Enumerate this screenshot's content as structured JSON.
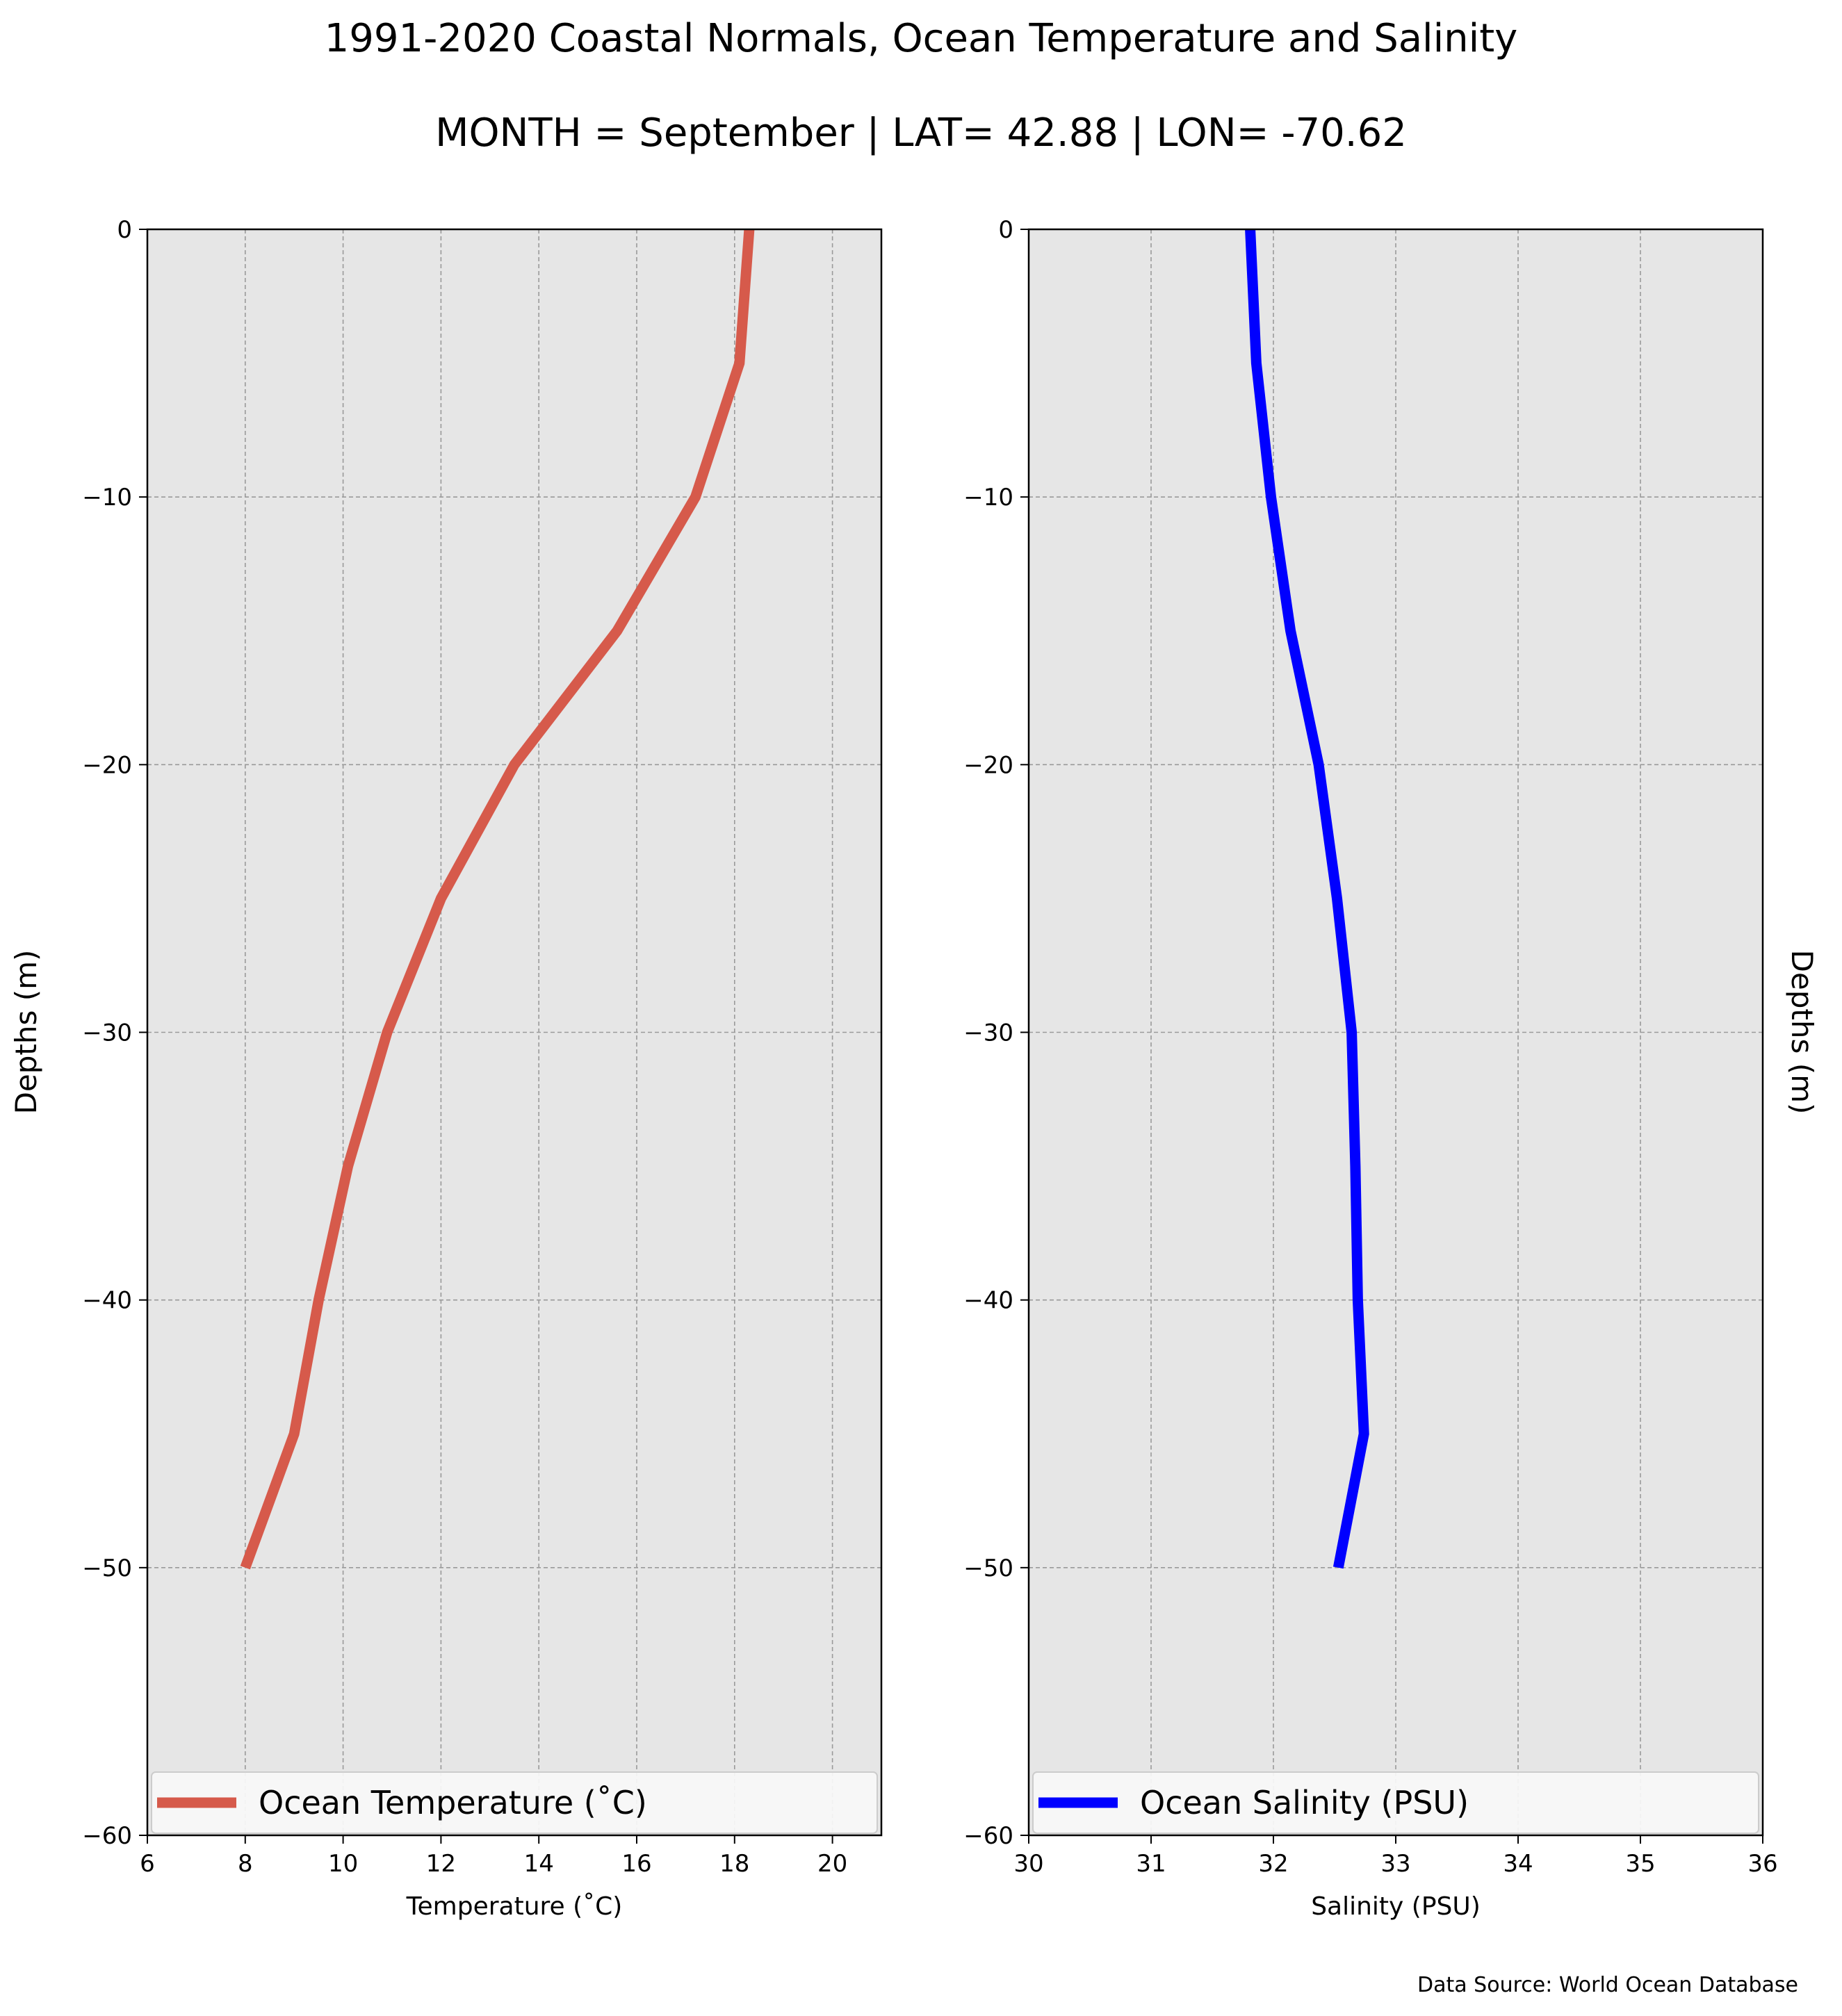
{
  "title": "1991-2020 Coastal Normals, Ocean Temperature and Salinity",
  "subtitle": "MONTH = September | LAT= 42.88 | LON= -70.62",
  "source": "Data Source: World Ocean Database",
  "colors": {
    "temperature": "#d65a4b",
    "salinity": "#0000ff",
    "axes_bg": "#e6e6e6",
    "grid": "#9a9a9a"
  },
  "chart_data": [
    {
      "type": "line",
      "orientation": "vertical-profile",
      "xlabel": "Temperature ($^\\circ$C)",
      "xlabel_display": "Temperature (˚C)",
      "ylabel": "Depths (m)",
      "xlim": [
        6,
        21
      ],
      "ylim": [
        -60,
        0
      ],
      "xticks": [
        6,
        8,
        10,
        12,
        14,
        16,
        18,
        20
      ],
      "xtick_labels": [
        "6",
        "8",
        "10",
        "12",
        "14",
        "16",
        "18",
        "20"
      ],
      "yticks": [
        0,
        -10,
        -20,
        -30,
        -40,
        -50,
        -60
      ],
      "ytick_labels": [
        "0",
        "−10",
        "−20",
        "−30",
        "−40",
        "−50",
        "−60"
      ],
      "grid": true,
      "legend_position": "lower center",
      "series": [
        {
          "name": "Ocean Temperature (˚C)",
          "color": "#d65a4b",
          "x": [
            18.3,
            18.1,
            17.2,
            15.6,
            13.5,
            12.0,
            10.9,
            10.1,
            9.5,
            9.0,
            8.0
          ],
          "y": [
            0,
            -5,
            -10,
            -15,
            -20,
            -25,
            -30,
            -35,
            -40,
            -45,
            -50
          ]
        }
      ]
    },
    {
      "type": "line",
      "orientation": "vertical-profile",
      "xlabel": "Salinity (PSU)",
      "ylabel": "Depths (m)",
      "xlim": [
        30,
        36
      ],
      "ylim": [
        -60,
        0
      ],
      "xticks": [
        30,
        31,
        32,
        33,
        34,
        35,
        36
      ],
      "xtick_labels": [
        "30",
        "31",
        "32",
        "33",
        "34",
        "35",
        "36"
      ],
      "yticks": [
        0,
        -10,
        -20,
        -30,
        -40,
        -50,
        -60
      ],
      "ytick_labels": [
        "0",
        "−10",
        "−20",
        "−30",
        "−40",
        "−50",
        "−60"
      ],
      "grid": true,
      "legend_position": "lower center",
      "series": [
        {
          "name": "Ocean Salinity (PSU)",
          "color": "#0000ff",
          "x": [
            31.81,
            31.86,
            31.98,
            32.14,
            32.37,
            32.52,
            32.64,
            32.67,
            32.69,
            32.74,
            32.53
          ],
          "y": [
            0,
            -5,
            -10,
            -15,
            -20,
            -25,
            -30,
            -35,
            -40,
            -45,
            -50
          ]
        }
      ]
    }
  ]
}
